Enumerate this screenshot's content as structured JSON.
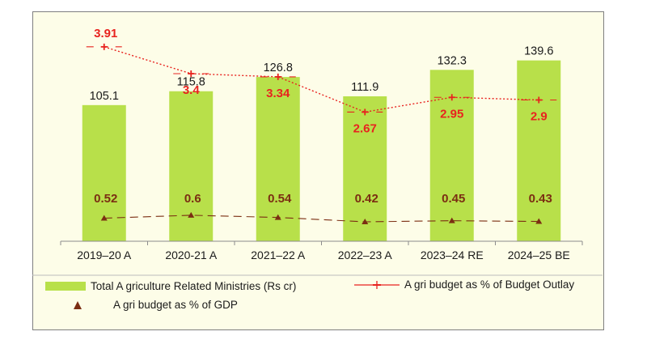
{
  "chart_data": {
    "type": "bar",
    "categories": [
      "2019–20 A",
      "2020-21 A",
      "2021–22 A",
      "2022–23 A",
      "2023–24 RE",
      "2024–25 BE"
    ],
    "series": [
      {
        "name": "Total Agriculture Related Ministries (Rs cr)",
        "type": "bar",
        "values": [
          105.1,
          115.8,
          126.8,
          111.9,
          132.3,
          139.6
        ],
        "labels": [
          "105.1",
          "115.8",
          "126.8",
          "111.9",
          "132.3",
          "139.6"
        ],
        "color": "#b8e04a"
      },
      {
        "name": "Agri budget as % of Budget Outlay",
        "type": "line",
        "values": [
          3.91,
          3.4,
          3.34,
          2.67,
          2.95,
          2.9
        ],
        "labels": [
          "3.91",
          "3.4",
          "3.34",
          "2.67",
          "2.95",
          "2.9"
        ],
        "color": "#e8231f"
      },
      {
        "name": "Agri budget as % of GDP",
        "type": "line",
        "values": [
          0.52,
          0.6,
          0.54,
          0.42,
          0.45,
          0.43
        ],
        "labels": [
          "0.52",
          "0.6",
          "0.54",
          "0.42",
          "0.45",
          "0.43"
        ],
        "color": "#7b2e12"
      }
    ],
    "legend_position": "bottom",
    "grid": false,
    "ylim": [
      0,
      175
    ]
  },
  "legend": {
    "bars": "Total A griculture Related  Ministries (Rs cr)",
    "outlay": "A gri budget as % of Budget Outlay",
    "gdp": "A gri budget as % of GDP"
  },
  "colors": {
    "plot_bg": "#fdfde8",
    "bar": "#b8e04a",
    "outlay_line": "#e8231f",
    "gdp_line": "#7b2e12",
    "axis": "#8c8c8c"
  }
}
